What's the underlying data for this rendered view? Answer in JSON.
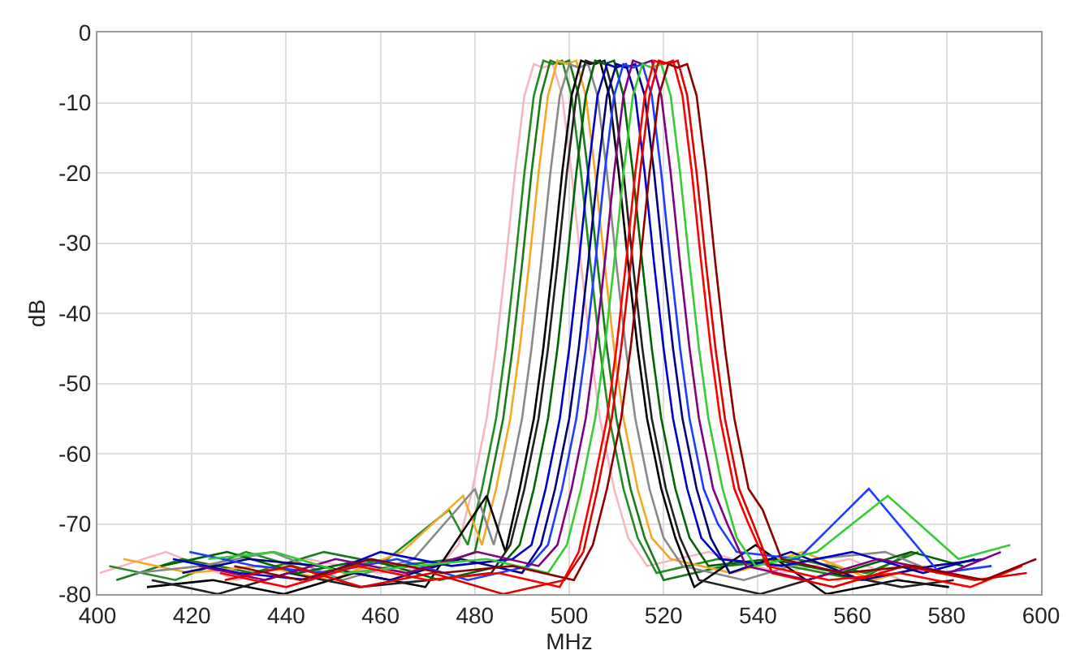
{
  "chart_data": {
    "type": "line",
    "xlabel": "MHz",
    "ylabel": "dB",
    "xlim": [
      400,
      600
    ],
    "ylim": [
      -80,
      0
    ],
    "xticks": [
      400,
      420,
      440,
      460,
      480,
      500,
      520,
      540,
      560,
      580,
      600
    ],
    "yticks": [
      -80,
      -70,
      -60,
      -50,
      -40,
      -30,
      -20,
      -10,
      0
    ],
    "grid": true,
    "marker": "none",
    "line_style": "solid",
    "series": [
      {
        "color": "#f4b6c2",
        "x": [
          400.5,
          414.5,
          429.5,
          444.5,
          459.5,
          472.5,
          476.5,
          479.5,
          482.5,
          484.5,
          486.5,
          488.5,
          490.5,
          492.5,
          494.5,
          496.5,
          498.5,
          500.5,
          502.5,
          504.5,
          506.5,
          509.5,
          512.5,
          516.5,
          529.5,
          544.5,
          559.5,
          570.5
        ],
        "values": [
          -77,
          -74,
          -78,
          -75,
          -77,
          -76,
          -73,
          -65,
          -55,
          -45,
          -33,
          -20,
          -9,
          -4.5,
          -5,
          -4.5,
          -9,
          -20,
          -33,
          -45,
          -55,
          -65,
          -72,
          -76,
          -74,
          -77,
          -75,
          -78
        ]
      },
      {
        "color": "#228b22",
        "x": [
          402.5,
          416.5,
          431.5,
          446.5,
          461.5,
          474.5,
          478.5,
          481.5,
          484.5,
          486.5,
          488.5,
          490.5,
          492.5,
          494.5,
          496.5,
          498.5,
          500.5,
          502.5,
          504.5,
          506.5,
          508.5,
          511.5,
          514.5,
          518.5,
          531.5,
          546.5,
          561.5,
          572.5
        ],
        "values": [
          -76,
          -78,
          -74,
          -77,
          -75,
          -68,
          -73,
          -65,
          -55,
          -45,
          -33,
          -20,
          -9,
          -4,
          -4.5,
          -4,
          -9,
          -20,
          -33,
          -45,
          -55,
          -65,
          -72,
          -77,
          -75,
          -76,
          -78,
          -74
        ]
      },
      {
        "color": "#1a7a1a",
        "x": [
          404,
          418,
          433,
          448,
          463,
          476,
          480,
          483,
          486,
          488,
          490,
          492,
          494,
          496,
          498,
          500,
          502,
          504,
          506,
          508,
          510,
          513,
          516,
          520,
          533,
          548,
          563,
          574
        ],
        "values": [
          -78,
          -75,
          -77,
          -74,
          -76,
          -75,
          -74,
          -65,
          -55,
          -45,
          -33,
          -20,
          -9,
          -4,
          -4.5,
          -4,
          -9,
          -20,
          -33,
          -45,
          -55,
          -65,
          -72,
          -78,
          -76,
          -75,
          -77,
          -74
        ]
      },
      {
        "color": "#f5a623",
        "x": [
          405.5,
          419.5,
          434.5,
          449.5,
          464.5,
          477.5,
          481.5,
          484.5,
          487.5,
          489.5,
          491.5,
          493.5,
          495.5,
          497.5,
          499.5,
          501.5,
          503.5,
          505.5,
          507.5,
          509.5,
          511.5,
          514.5,
          517.5,
          521.5,
          534.5,
          549.5,
          564.5,
          575.5
        ],
        "values": [
          -75,
          -77,
          -76,
          -78,
          -74,
          -66,
          -73,
          -65,
          -55,
          -45,
          -33,
          -20,
          -9,
          -4,
          -4.5,
          -4,
          -9,
          -20,
          -33,
          -45,
          -55,
          -65,
          -72,
          -75,
          -77,
          -74,
          -78,
          -76
        ]
      },
      {
        "color": "#888888",
        "x": [
          408,
          422,
          437,
          452,
          467,
          480,
          484,
          487,
          490,
          492,
          494,
          496,
          498,
          500,
          502,
          504,
          506,
          508,
          510,
          512,
          514,
          517,
          520,
          524,
          537,
          552,
          567,
          578
        ],
        "values": [
          -77,
          -76,
          -74,
          -78,
          -75,
          -65,
          -73,
          -65,
          -55,
          -45,
          -33,
          -20,
          -9,
          -4.5,
          -5,
          -4.5,
          -9,
          -20,
          -33,
          -45,
          -55,
          -65,
          -72,
          -76,
          -78,
          -75,
          -74,
          -77
        ]
      },
      {
        "color": "#000000",
        "x": [
          410.5,
          424.5,
          439.5,
          454.5,
          469.5,
          482.5,
          486.5,
          489.5,
          492.5,
          494.5,
          496.5,
          498.5,
          500.5,
          502.5,
          504.5,
          506.5,
          508.5,
          510.5,
          512.5,
          514.5,
          516.5,
          519.5,
          522.5,
          526.5,
          539.5,
          554.5,
          569.5,
          580.5
        ],
        "values": [
          -79,
          -78,
          -80,
          -77,
          -79,
          -66,
          -74,
          -65,
          -55,
          -45,
          -33,
          -20,
          -9,
          -4,
          -4.5,
          -4,
          -9,
          -20,
          -33,
          -45,
          -55,
          -65,
          -72,
          -79,
          -73,
          -80,
          -78,
          -79
        ]
      },
      {
        "color": "#222222",
        "x": [
          411.5,
          425.5,
          440.5,
          455.5,
          470.5,
          483.5,
          487.5,
          490.5,
          493.5,
          495.5,
          497.5,
          499.5,
          501.5,
          503.5,
          505.5,
          507.5,
          509.5,
          511.5,
          513.5,
          515.5,
          517.5,
          520.5,
          523.5,
          527.5,
          540.5,
          555.5,
          570.5,
          581.5
        ],
        "values": [
          -78,
          -80,
          -77,
          -79,
          -78,
          -77,
          -73,
          -65,
          -55,
          -45,
          -33,
          -20,
          -9,
          -4,
          -4.5,
          -4,
          -9,
          -20,
          -33,
          -45,
          -55,
          -65,
          -72,
          -78,
          -80,
          -77,
          -79,
          -78
        ]
      },
      {
        "color": "#006400",
        "x": [
          413.5,
          427.5,
          442.5,
          457.5,
          472.5,
          485.5,
          489.5,
          492.5,
          495.5,
          497.5,
          499.5,
          501.5,
          503.5,
          505.5,
          507.5,
          509.5,
          511.5,
          513.5,
          515.5,
          517.5,
          519.5,
          522.5,
          525.5,
          529.5,
          542.5,
          557.5,
          572.5,
          583.5
        ],
        "values": [
          -76,
          -74,
          -77,
          -75,
          -78,
          -76,
          -73,
          -65,
          -55,
          -45,
          -33,
          -20,
          -9,
          -4,
          -4.5,
          -4,
          -9,
          -20,
          -33,
          -45,
          -55,
          -65,
          -72,
          -76,
          -75,
          -77,
          -74,
          -76
        ]
      },
      {
        "color": "#0000cc",
        "x": [
          416,
          430,
          445,
          460,
          475,
          488,
          492,
          495,
          498,
          500,
          502,
          504,
          506,
          508,
          510,
          512,
          514,
          516,
          518,
          520,
          522,
          525,
          528,
          532,
          545,
          560,
          575,
          586
        ],
        "values": [
          -75,
          -77,
          -78,
          -74,
          -76,
          -75,
          -73,
          -65,
          -55,
          -45,
          -33,
          -20,
          -9,
          -4.5,
          -5,
          -4.5,
          -9,
          -20,
          -33,
          -45,
          -55,
          -65,
          -72,
          -75,
          -76,
          -74,
          -77,
          -75
        ]
      },
      {
        "color": "#000080",
        "x": [
          418,
          432,
          447,
          462,
          477,
          490,
          494,
          497,
          500,
          502,
          504,
          506,
          508,
          510,
          512,
          514,
          516,
          518,
          520,
          522,
          524,
          527,
          530,
          534,
          547,
          562,
          577,
          588
        ],
        "values": [
          -77,
          -75,
          -76,
          -78,
          -75,
          -77,
          -73,
          -65,
          -55,
          -45,
          -33,
          -20,
          -9,
          -4.5,
          -5,
          -4.5,
          -9,
          -20,
          -33,
          -45,
          -55,
          -65,
          -72,
          -77,
          -74,
          -78,
          -76,
          -75
        ]
      },
      {
        "color": "#1e3cff",
        "x": [
          419.5,
          433.5,
          448.5,
          463.5,
          478.5,
          491.5,
          495.5,
          498.5,
          501.5,
          503.5,
          505.5,
          507.5,
          509.5,
          511.5,
          513.5,
          515.5,
          517.5,
          519.5,
          521.5,
          523.5,
          525.5,
          528.5,
          531.5,
          535.5,
          548.5,
          563.5,
          578.5,
          589.5
        ],
        "values": [
          -74,
          -76,
          -77,
          -75,
          -78,
          -76,
          -73,
          -65,
          -55,
          -45,
          -33,
          -20,
          -9,
          -4.5,
          -5,
          -4.5,
          -9,
          -20,
          -33,
          -45,
          -55,
          -65,
          -70,
          -74,
          -75,
          -65,
          -77,
          -76
        ]
      },
      {
        "color": "#800080",
        "x": [
          421.5,
          435.5,
          450.5,
          465.5,
          480.5,
          493.5,
          497.5,
          500.5,
          503.5,
          505.5,
          507.5,
          509.5,
          511.5,
          513.5,
          515.5,
          517.5,
          519.5,
          521.5,
          523.5,
          525.5,
          527.5,
          530.5,
          533.5,
          537.5,
          550.5,
          565.5,
          580.5,
          591.5
        ],
        "values": [
          -76,
          -78,
          -75,
          -77,
          -74,
          -76,
          -73,
          -65,
          -55,
          -45,
          -33,
          -20,
          -9,
          -4,
          -4.5,
          -4,
          -9,
          -20,
          -33,
          -45,
          -55,
          -65,
          -70,
          -76,
          -78,
          -75,
          -77,
          -74
        ]
      },
      {
        "color": "#33cc33",
        "x": [
          423.5,
          437.5,
          452.5,
          467.5,
          482.5,
          495.5,
          499.5,
          502.5,
          505.5,
          507.5,
          509.5,
          511.5,
          513.5,
          515.5,
          517.5,
          519.5,
          521.5,
          523.5,
          525.5,
          527.5,
          529.5,
          532.5,
          535.5,
          539.5,
          552.5,
          567.5,
          582.5,
          593.5
        ],
        "values": [
          -75,
          -74,
          -77,
          -76,
          -75,
          -77,
          -73,
          -65,
          -55,
          -45,
          -33,
          -20,
          -9,
          -4.5,
          -5,
          -4.5,
          -9,
          -20,
          -33,
          -45,
          -55,
          -65,
          -72,
          -76,
          -74,
          -66,
          -75,
          -73
        ]
      },
      {
        "color": "#ff0000",
        "x": [
          426,
          440,
          455,
          470,
          485,
          498,
          502,
          505,
          508,
          510,
          512,
          514,
          516,
          518,
          520,
          522,
          524,
          526,
          528,
          530,
          532,
          535,
          538,
          542,
          555,
          570,
          585,
          596
        ],
        "values": [
          -77,
          -79,
          -76,
          -78,
          -77,
          -79,
          -74,
          -65,
          -55,
          -45,
          -33,
          -20,
          -9,
          -4,
          -4.5,
          -4,
          -9,
          -20,
          -33,
          -45,
          -55,
          -65,
          -70,
          -76,
          -78,
          -77,
          -79,
          -76
        ]
      },
      {
        "color": "#e00000",
        "x": [
          427,
          441,
          456,
          471,
          486,
          499,
          503,
          506,
          509,
          511,
          513,
          515,
          517,
          519,
          521,
          523,
          525,
          527,
          529,
          531,
          533,
          536,
          539,
          543,
          556,
          571,
          586,
          597
        ],
        "values": [
          -78,
          -76,
          -79,
          -77,
          -80,
          -78,
          -74,
          -65,
          -55,
          -45,
          -33,
          -20,
          -9,
          -4,
          -4.5,
          -4,
          -9,
          -20,
          -33,
          -45,
          -55,
          -65,
          -70,
          -77,
          -79,
          -76,
          -78,
          -77
        ]
      },
      {
        "color": "#8b0000",
        "x": [
          429,
          443,
          458,
          473,
          488,
          501,
          505,
          508,
          511,
          513,
          515,
          517,
          519,
          521,
          523,
          525,
          527,
          529,
          531,
          533,
          535,
          538,
          541,
          545,
          558,
          573,
          588,
          599
        ],
        "values": [
          -76,
          -78,
          -75,
          -77,
          -76,
          -78,
          -73,
          -65,
          -55,
          -45,
          -33,
          -20,
          -9,
          -4.5,
          -5,
          -4.5,
          -9,
          -20,
          -33,
          -45,
          -55,
          -65,
          -68,
          -75,
          -77,
          -76,
          -78,
          -75
        ]
      }
    ]
  }
}
